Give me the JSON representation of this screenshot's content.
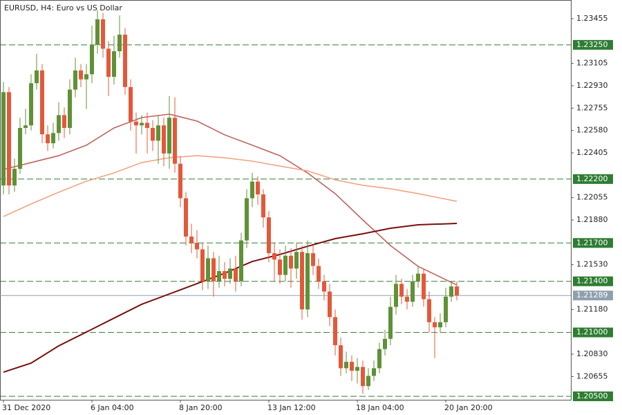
{
  "chart_data": {
    "type": "candlestick",
    "title": "EURUSD, H4:  Euro vs US Dollar",
    "categories": [
      "31 Dec 2020",
      null,
      null,
      null,
      null,
      null,
      null,
      null,
      null,
      null,
      null,
      null,
      null,
      null,
      null,
      null,
      "6 Jan 04:00",
      null,
      null,
      null,
      null,
      null,
      null,
      null,
      null,
      null,
      null,
      null,
      null,
      null,
      null,
      null,
      "8 Jan 20:00",
      null,
      null,
      null,
      null,
      null,
      null,
      null,
      null,
      null,
      null,
      null,
      null,
      null,
      null,
      null,
      "13 Jan 12:00",
      null,
      null,
      null,
      null,
      null,
      null,
      null,
      null,
      null,
      null,
      null,
      null,
      null,
      null,
      null,
      "18 Jan 04:00",
      null,
      null,
      null,
      null,
      null,
      null,
      null,
      null,
      null,
      null,
      null,
      null,
      null,
      null,
      null,
      "20 Jan 20:00",
      null,
      null
    ],
    "open": [
      1.2215,
      1.2288,
      1.2215,
      1.2228,
      1.226,
      1.2262,
      1.2295,
      1.2305,
      1.2255,
      1.2248,
      1.2256,
      1.227,
      1.226,
      1.229,
      1.2305,
      1.2298,
      1.2302,
      1.2325,
      1.2345,
      1.2322,
      1.23,
      1.232,
      1.2333,
      1.2292,
      1.2265,
      1.2262,
      1.2264,
      1.226,
      1.225,
      1.2262,
      1.224,
      1.2268,
      1.2232,
      1.2205,
      1.2175,
      1.217,
      1.2165,
      1.214,
      1.2158,
      1.214,
      1.2148,
      1.2142,
      1.215,
      1.214,
      1.2172,
      1.2205,
      1.2218,
      1.2208,
      1.219,
      1.2162,
      1.2157,
      1.2145,
      1.216,
      1.215,
      1.2163,
      1.2118,
      1.2162,
      1.2152,
      1.214,
      1.2132,
      1.2112,
      1.209,
      1.2072,
      1.2077,
      1.207,
      1.2073,
      1.2058,
      1.2066,
      1.2072,
      1.2087,
      1.2095,
      1.212,
      1.2138,
      1.2128,
      1.2124,
      1.214,
      1.2146,
      1.2126,
      1.2108,
      1.2104,
      1.2108,
      1.2128,
      1.2136
    ],
    "high": [
      1.2296,
      1.2292,
      1.2236,
      1.2268,
      1.2275,
      1.2302,
      1.2318,
      1.231,
      1.2262,
      1.2264,
      1.228,
      1.2276,
      1.2298,
      1.2315,
      1.231,
      1.231,
      1.234,
      1.2352,
      1.235,
      1.2328,
      1.2332,
      1.2348,
      1.2338,
      1.2298,
      1.2272,
      1.227,
      1.2272,
      1.2266,
      1.227,
      1.2268,
      1.2285,
      1.2284,
      1.2238,
      1.221,
      1.2185,
      1.218,
      1.217,
      1.2168,
      1.2163,
      1.216,
      1.2155,
      1.2158,
      1.216,
      1.2178,
      1.2212,
      1.2225,
      1.2222,
      1.2212,
      1.2195,
      1.217,
      1.2165,
      1.2168,
      1.2166,
      1.217,
      1.2168,
      1.2172,
      1.2168,
      1.2158,
      1.2145,
      1.2138,
      1.2118,
      1.2096,
      1.2085,
      1.2082,
      1.208,
      1.2078,
      1.2072,
      1.2078,
      1.2092,
      1.2102,
      1.2128,
      1.2145,
      1.2142,
      1.2134,
      1.2145,
      1.2152,
      1.215,
      1.2132,
      1.2112,
      1.2115,
      1.2135,
      1.214,
      1.214
    ],
    "low": [
      1.2208,
      1.2208,
      1.221,
      1.2224,
      1.2255,
      1.2258,
      1.229,
      1.2248,
      1.2242,
      1.2244,
      1.225,
      1.2252,
      1.2255,
      1.2284,
      1.2292,
      1.2275,
      1.2295,
      1.2318,
      1.2315,
      1.2285,
      1.2294,
      1.2315,
      1.2286,
      1.2258,
      1.224,
      1.2255,
      1.224,
      1.2242,
      1.2232,
      1.223,
      1.2228,
      1.2225,
      1.2198,
      1.2168,
      1.2162,
      1.2158,
      1.2133,
      1.2134,
      1.2128,
      1.2135,
      1.2136,
      1.2138,
      1.2132,
      1.2136,
      1.2166,
      1.2198,
      1.22,
      1.2182,
      1.2155,
      1.214,
      1.2138,
      1.214,
      1.2135,
      1.2142,
      1.211,
      1.2112,
      1.2145,
      1.2134,
      1.2125,
      1.2105,
      1.2082,
      1.2066,
      1.2068,
      1.2062,
      1.206,
      1.2052,
      1.2055,
      1.2062,
      1.2068,
      1.2082,
      1.209,
      1.2114,
      1.2122,
      1.2118,
      1.212,
      1.2135,
      1.212,
      1.21,
      1.208,
      1.21,
      1.2104,
      1.2124,
      1.2125
    ],
    "close": [
      1.2288,
      1.2215,
      1.2228,
      1.226,
      1.2262,
      1.2295,
      1.2305,
      1.2255,
      1.2248,
      1.2256,
      1.227,
      1.226,
      1.229,
      1.2305,
      1.2298,
      1.2302,
      1.2325,
      1.2345,
      1.2322,
      1.23,
      1.232,
      1.2333,
      1.2292,
      1.2265,
      1.2262,
      1.2264,
      1.226,
      1.225,
      1.2262,
      1.224,
      1.2268,
      1.2232,
      1.2205,
      1.2175,
      1.217,
      1.2165,
      1.214,
      1.2158,
      1.214,
      1.2148,
      1.2142,
      1.215,
      1.214,
      1.2172,
      1.2205,
      1.2218,
      1.2208,
      1.219,
      1.2162,
      1.2157,
      1.2145,
      1.216,
      1.215,
      1.2163,
      1.2118,
      1.2162,
      1.2152,
      1.214,
      1.2132,
      1.2112,
      1.209,
      1.2072,
      1.2077,
      1.207,
      1.2073,
      1.2058,
      1.2066,
      1.2072,
      1.2087,
      1.2095,
      1.212,
      1.2138,
      1.2128,
      1.2124,
      1.214,
      1.2146,
      1.2126,
      1.2108,
      1.2104,
      1.2108,
      1.2128,
      1.2136,
      1.21289
    ],
    "up_color": "#5f9136",
    "down_color": "#e4583a",
    "moving_averages": [
      {
        "color": "#c0625e",
        "x": [
          0,
          5,
          10,
          15,
          20,
          25,
          30,
          35,
          40,
          45,
          50,
          55,
          60,
          65,
          70,
          75,
          82
        ],
        "values": [
          1.22275,
          1.22329,
          1.22383,
          1.22465,
          1.226,
          1.22681,
          1.22708,
          1.22654,
          1.22546,
          1.22465,
          1.22383,
          1.22248,
          1.22086,
          1.2188,
          1.2168,
          1.21517,
          1.21371
        ]
      },
      {
        "color": "#f4a383",
        "x": [
          0,
          5,
          10,
          15,
          20,
          25,
          30,
          35,
          40,
          45,
          50,
          55,
          60,
          65,
          70,
          75,
          82
        ],
        "values": [
          1.21907,
          1.22005,
          1.22097,
          1.22183,
          1.22248,
          1.22329,
          1.22367,
          1.22383,
          1.22367,
          1.2234,
          1.22302,
          1.22264,
          1.22194,
          1.22151,
          1.22124,
          1.22086,
          1.22026
        ]
      },
      {
        "color": "#7a0e0e",
        "x": [
          0,
          5,
          10,
          15,
          20,
          25,
          30,
          35,
          40,
          45,
          50,
          55,
          60,
          65,
          70,
          75,
          82
        ],
        "values": [
          1.20689,
          1.2076,
          1.20895,
          1.21003,
          1.21112,
          1.2122,
          1.21301,
          1.21382,
          1.21463,
          1.21555,
          1.2161,
          1.21674,
          1.21734,
          1.21772,
          1.21815,
          1.21842,
          1.21853
        ]
      }
    ],
    "levels": [
      {
        "value": 1.2325,
        "label": "1.23250"
      },
      {
        "value": 1.222,
        "label": "1.22200"
      },
      {
        "value": 1.217,
        "label": "1.21700"
      },
      {
        "value": 1.214,
        "label": "1.21400"
      },
      {
        "value": 1.21,
        "label": "1.21000"
      },
      {
        "value": 1.205,
        "label": "1.20500"
      }
    ],
    "level_color": "#2e7d32",
    "current_price": 1.21289,
    "current_color": "#8fa0ad",
    "ylim": [
      1.20473,
      1.23601
    ],
    "yticks": [
      1.23455,
      1.23105,
      {
        "value": 1.2293,
        "label": "1.22930"
      },
      1.22755,
      {
        "value": 1.2258,
        "label": "1.22580"
      },
      1.22405,
      1.22055,
      {
        "value": 1.2188,
        "label": "1.21880"
      },
      {
        "value": 1.2153,
        "label": "1.21530"
      },
      {
        "value": 1.2118,
        "label": "1.21180"
      },
      {
        "value": 1.2083,
        "label": "1.20830"
      },
      1.20655
    ]
  }
}
